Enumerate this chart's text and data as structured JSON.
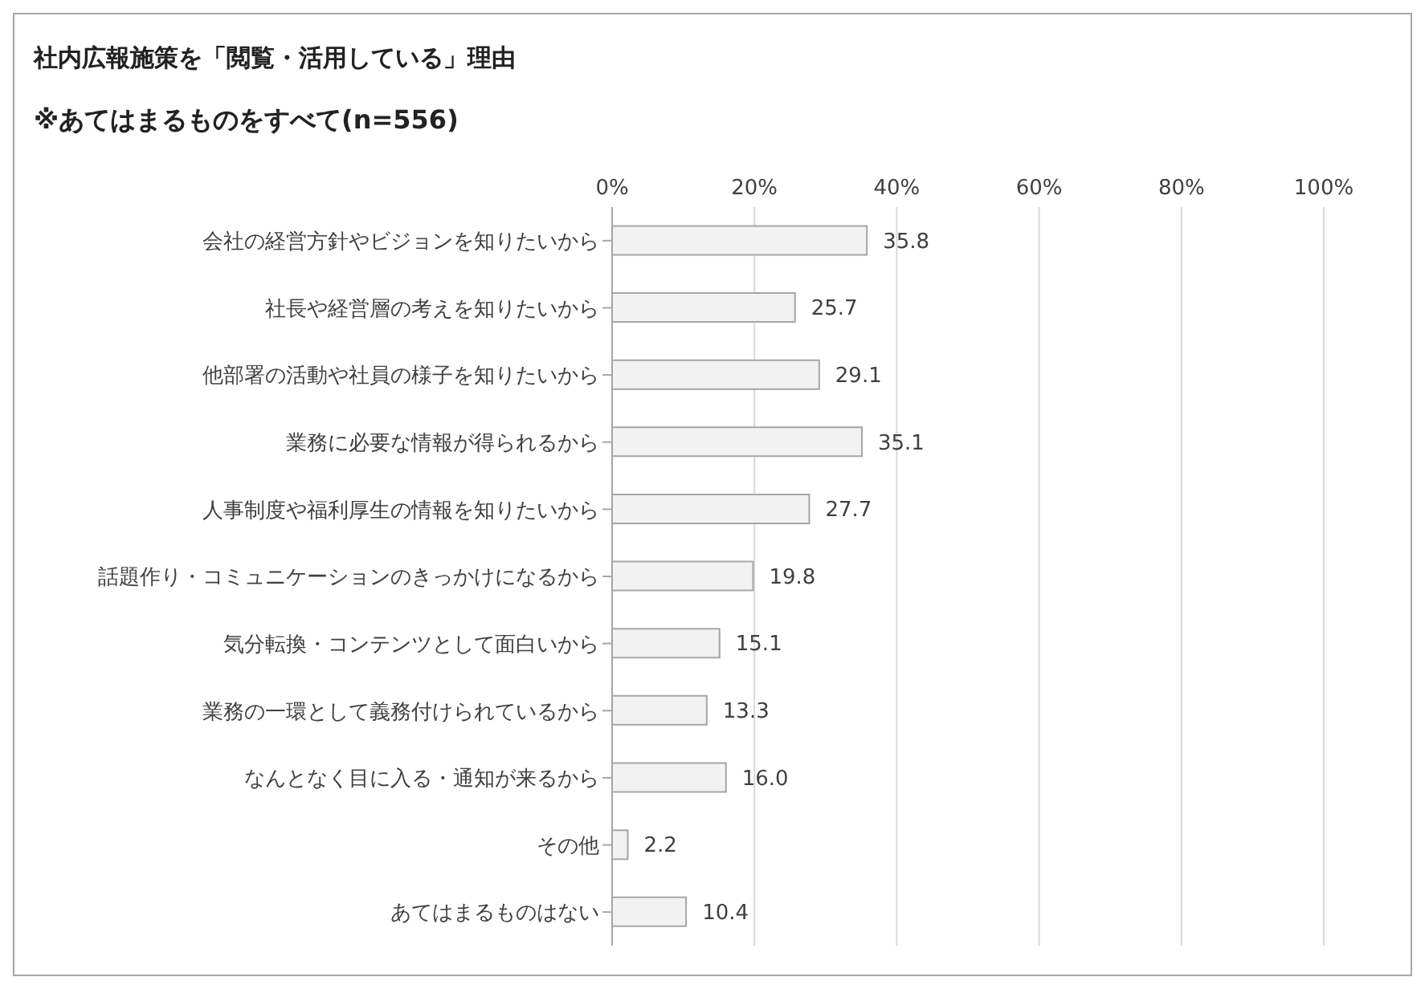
{
  "chart_data": {
    "type": "bar",
    "orientation": "horizontal",
    "title": "社内広報施策を「閲覧・活用している」理由",
    "subtitle": "※あてはまるものをすべて(n=556)",
    "categories": [
      "会社の経営方針やビジョンを知りたいから",
      "社長や経営層の考えを知りたいから",
      "他部署の活動や社員の様子を知りたいから",
      "業務に必要な情報が得られるから",
      "人事制度や福利厚生の情報を知りたいから",
      "話題作り・コミュニケーションのきっかけになるから",
      "気分転換・コンテンツとして面白いから",
      "業務の一環として義務付けられているから",
      "なんとなく目に入る・通知が来るから",
      "その他",
      "あてはまるものはない"
    ],
    "values": [
      35.8,
      25.7,
      29.1,
      35.1,
      27.7,
      19.8,
      15.1,
      13.3,
      16.0,
      2.2,
      10.4
    ],
    "value_labels": [
      "35.8",
      "25.7",
      "29.1",
      "35.1",
      "27.7",
      "19.8",
      "15.1",
      "13.3",
      "16.0",
      "2.2",
      "10.4"
    ],
    "color": "#f2f2f2",
    "xlim": [
      0,
      100
    ],
    "xticks": [
      {
        "value": 0,
        "label": "0%"
      },
      {
        "value": 20,
        "label": "20%"
      },
      {
        "value": 40,
        "label": "40%"
      },
      {
        "value": 60,
        "label": "60%"
      },
      {
        "value": 80,
        "label": "80%"
      },
      {
        "value": 100,
        "label": "100%"
      }
    ],
    "grid": "x"
  }
}
